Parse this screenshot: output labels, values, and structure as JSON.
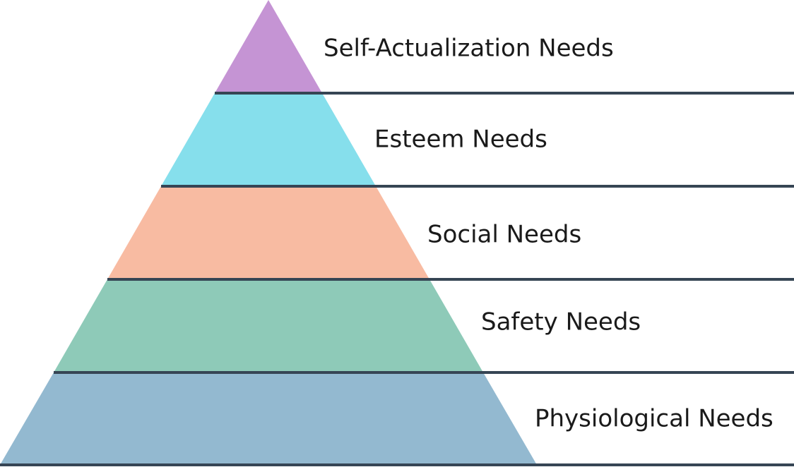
{
  "levels": [
    {
      "label": "Self-Actualization Needs"
    },
    {
      "label": "Esteem Needs"
    },
    {
      "label": "Social Needs"
    },
    {
      "label": "Safety Needs"
    },
    {
      "label": "Physiological Needs"
    }
  ]
}
